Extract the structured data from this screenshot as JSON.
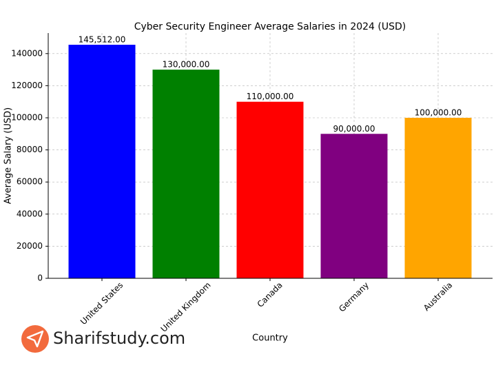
{
  "chart_data": {
    "type": "bar",
    "title": "Cyber Security Engineer Average Salaries in 2024 (USD)",
    "x_label": "Country",
    "y_label": "Average Salary (USD)",
    "categories": [
      "United States",
      "United Kingdom",
      "Canada",
      "Germany",
      "Australia"
    ],
    "values": [
      145512,
      130000,
      110000,
      90000,
      100000
    ],
    "value_labels": [
      "145,512.00",
      "130,000.00",
      "110,000.00",
      "90,000.00",
      "100,000.00"
    ],
    "colors": [
      "#0000ff",
      "#008000",
      "#ff0000",
      "#800080",
      "#ffa500"
    ],
    "ylim": [
      0,
      152788
    ],
    "yticks": [
      0,
      20000,
      40000,
      60000,
      80000,
      100000,
      120000,
      140000
    ],
    "grid": true,
    "watermark": "Sharifstudy.com"
  }
}
